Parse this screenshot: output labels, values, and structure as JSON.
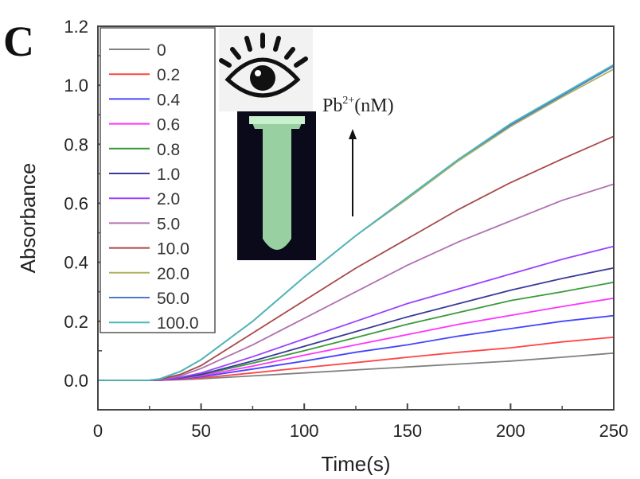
{
  "panel_label": "C",
  "chart_data": {
    "type": "line",
    "title": "",
    "xlabel": "Time(s)",
    "ylabel": "Absorbance",
    "xlim": [
      0,
      250
    ],
    "ylim": [
      -0.1,
      1.2
    ],
    "xticks": [
      "0",
      "50",
      "100",
      "150",
      "200",
      "250"
    ],
    "xtick_values": [
      0,
      50,
      100,
      150,
      200,
      250
    ],
    "yticks": [
      "0.0",
      "0.2",
      "0.4",
      "0.6",
      "0.8",
      "1.0",
      "1.2"
    ],
    "ytick_values": [
      0,
      0.2,
      0.4,
      0.6,
      0.8,
      1.0,
      1.2
    ],
    "legend_placement": "top-left",
    "annotation": {
      "text": "Pb",
      "superscript": "2+",
      "suffix": "(nM)"
    },
    "x": [
      0,
      25,
      30,
      40,
      50,
      75,
      100,
      125,
      150,
      175,
      200,
      225,
      250
    ],
    "series": [
      {
        "name": "0",
        "color": "#808080",
        "values": [
          0,
          0,
          0,
          0.002,
          0.005,
          0.015,
          0.025,
          0.035,
          0.045,
          0.055,
          0.065,
          0.078,
          0.092
        ]
      },
      {
        "name": "0.2",
        "color": "#ff4545",
        "values": [
          0,
          0,
          0,
          0.003,
          0.008,
          0.025,
          0.043,
          0.06,
          0.078,
          0.095,
          0.11,
          0.13,
          0.146
        ]
      },
      {
        "name": "0.4",
        "color": "#4545ff",
        "values": [
          0,
          0,
          0,
          0.005,
          0.012,
          0.038,
          0.065,
          0.095,
          0.12,
          0.15,
          0.175,
          0.2,
          0.219
        ]
      },
      {
        "name": "0.6",
        "color": "#ff33ff",
        "values": [
          0,
          0,
          0,
          0.006,
          0.015,
          0.048,
          0.085,
          0.12,
          0.155,
          0.19,
          0.22,
          0.25,
          0.278
        ]
      },
      {
        "name": "0.8",
        "color": "#3a9a3a",
        "values": [
          0,
          0,
          0.001,
          0.007,
          0.018,
          0.058,
          0.1,
          0.145,
          0.19,
          0.23,
          0.27,
          0.3,
          0.332
        ]
      },
      {
        "name": "1.0",
        "color": "#3a3a99",
        "values": [
          0,
          0,
          0.001,
          0.008,
          0.02,
          0.065,
          0.115,
          0.165,
          0.215,
          0.26,
          0.305,
          0.345,
          0.381
        ]
      },
      {
        "name": "2.0",
        "color": "#9a40ff",
        "values": [
          0,
          0,
          0.001,
          0.01,
          0.025,
          0.08,
          0.14,
          0.2,
          0.26,
          0.31,
          0.36,
          0.41,
          0.454
        ]
      },
      {
        "name": "5.0",
        "color": "#b070b0",
        "values": [
          0,
          0,
          0.002,
          0.015,
          0.04,
          0.12,
          0.21,
          0.3,
          0.39,
          0.47,
          0.54,
          0.61,
          0.665
        ]
      },
      {
        "name": "10.0",
        "color": "#a84848",
        "values": [
          0,
          0,
          0.003,
          0.02,
          0.05,
          0.16,
          0.27,
          0.38,
          0.48,
          0.58,
          0.67,
          0.75,
          0.827
        ]
      },
      {
        "name": "20.0",
        "color": "#b0b060",
        "values": [
          0,
          0,
          0.005,
          0.03,
          0.07,
          0.2,
          0.35,
          0.49,
          0.615,
          0.745,
          0.86,
          0.96,
          1.055
        ]
      },
      {
        "name": "50.0",
        "color": "#4a7acc",
        "values": [
          0,
          0,
          0.005,
          0.03,
          0.07,
          0.2,
          0.35,
          0.49,
          0.62,
          0.75,
          0.865,
          0.965,
          1.065
        ]
      },
      {
        "name": "100.0",
        "color": "#4cb8b8",
        "values": [
          0,
          0,
          0.005,
          0.03,
          0.07,
          0.2,
          0.35,
          0.49,
          0.62,
          0.75,
          0.87,
          0.97,
          1.07
        ]
      }
    ]
  }
}
